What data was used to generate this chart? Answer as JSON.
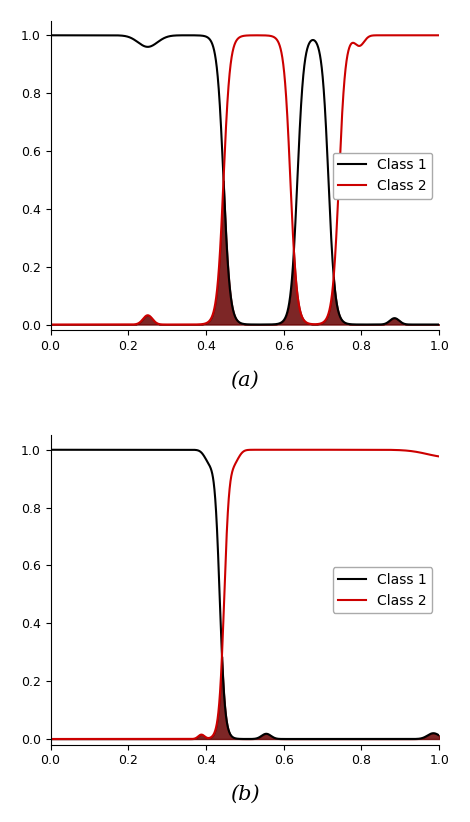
{
  "xlim": [
    0.0,
    1.0
  ],
  "ylim": [
    -0.02,
    1.05
  ],
  "class1_color": "#000000",
  "class2_color": "#cc0000",
  "fill_color": "#660000",
  "fill_alpha": 0.85,
  "label_class1": "Class 1",
  "label_class2": "Class 2",
  "label_a": "(a)",
  "label_b": "(b)",
  "legend_loc": "center right",
  "linewidth": 1.5,
  "background_color": "#ffffff"
}
